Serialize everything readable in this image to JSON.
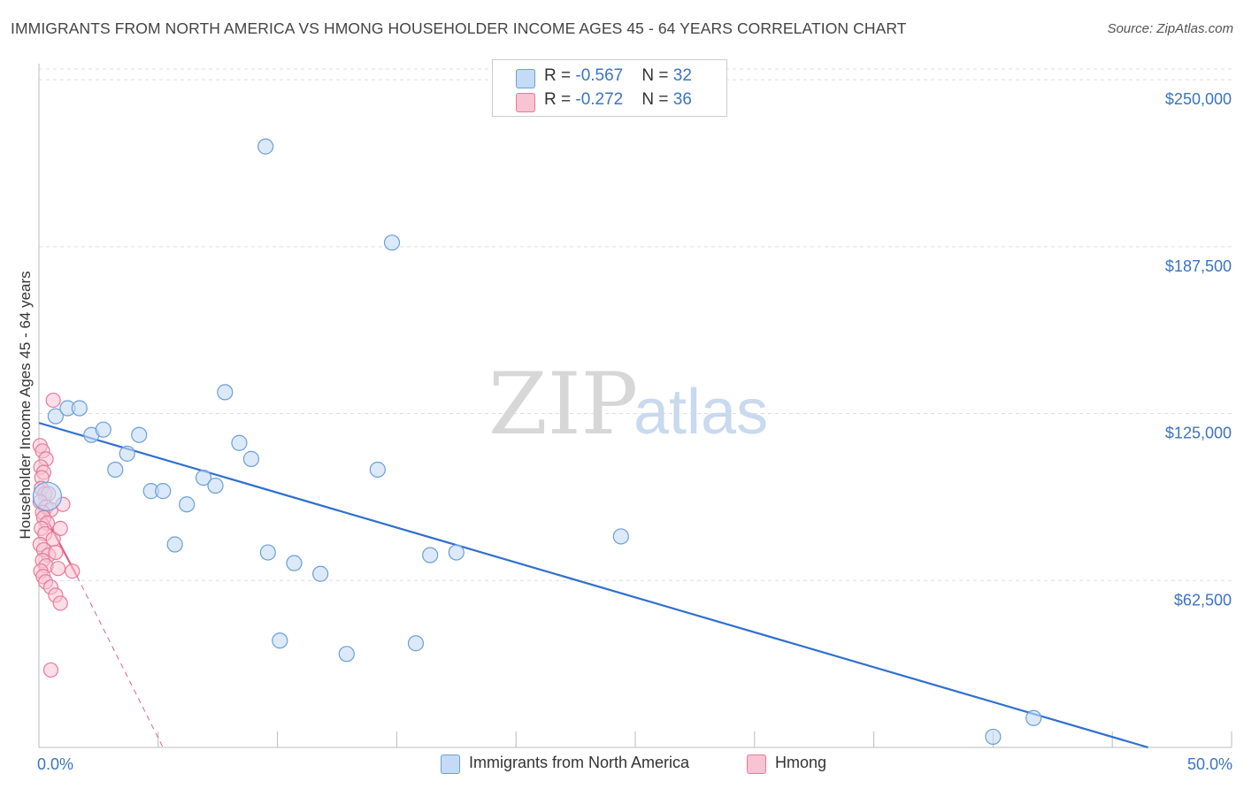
{
  "title": "IMMIGRANTS FROM NORTH AMERICA VS HMONG HOUSEHOLDER INCOME AGES 45 - 64 YEARS CORRELATION CHART",
  "source": "Source: ZipAtlas.com",
  "watermark": {
    "part1": "ZIP",
    "part2": "atlas"
  },
  "colors": {
    "blue_fill": "#c5daf5",
    "blue_stroke": "#6a9fd8",
    "blue_line": "#2f6fcf",
    "pink_fill": "#f8c3d3",
    "pink_stroke": "#e8799b",
    "pink_line": "#e0608a",
    "tick_text": "#3a74c4",
    "grid": "#dddddd"
  },
  "legend": {
    "rows": [
      {
        "r_label": "R = ",
        "r_value": "-0.567",
        "n_label": "N = ",
        "n_value": "32"
      },
      {
        "r_label": "R = ",
        "r_value": "-0.272",
        "n_label": "N = ",
        "n_value": "36"
      }
    ]
  },
  "chart_data": {
    "type": "scatter",
    "title": "IMMIGRANTS FROM NORTH AMERICA VS HMONG HOUSEHOLDER INCOME AGES 45 - 64 YEARS CORRELATION CHART",
    "xlabel": "",
    "ylabel": "Householder Income Ages 45 - 64 years",
    "xlim": [
      0,
      50
    ],
    "ylim": [
      0,
      256000
    ],
    "x_tick_labels": [
      "0.0%",
      "50.0%"
    ],
    "y_ticks": [
      62500,
      125000,
      187500,
      250000
    ],
    "y_tick_labels": [
      "$62,500",
      "$125,000",
      "$187,500",
      "$250,000"
    ],
    "grid": true,
    "legend_position": "top-center",
    "series": [
      {
        "name": "Immigrants from North America",
        "color": "#6a9fd8",
        "points": [
          [
            0.35,
            94000
          ],
          [
            0.7,
            124000
          ],
          [
            1.2,
            127000
          ],
          [
            1.7,
            127000
          ],
          [
            2.2,
            117000
          ],
          [
            2.7,
            119000
          ],
          [
            3.2,
            104000
          ],
          [
            3.7,
            110000
          ],
          [
            4.2,
            117000
          ],
          [
            4.7,
            96000
          ],
          [
            5.2,
            96000
          ],
          [
            5.7,
            76000
          ],
          [
            6.2,
            91000
          ],
          [
            6.9,
            101000
          ],
          [
            7.4,
            98000
          ],
          [
            7.8,
            133000
          ],
          [
            8.4,
            114000
          ],
          [
            8.9,
            108000
          ],
          [
            9.5,
            225000
          ],
          [
            9.6,
            73000
          ],
          [
            10.1,
            40000
          ],
          [
            10.7,
            69000
          ],
          [
            11.8,
            65000
          ],
          [
            12.9,
            35000
          ],
          [
            14.2,
            104000
          ],
          [
            14.8,
            189000
          ],
          [
            15.8,
            39000
          ],
          [
            16.4,
            72000
          ],
          [
            17.5,
            73000
          ],
          [
            24.4,
            79000
          ],
          [
            40.0,
            4000
          ],
          [
            41.7,
            11000
          ]
        ],
        "trend": {
          "x": [
            0,
            46.5
          ],
          "y": [
            121500,
            0
          ]
        }
      },
      {
        "name": "Hmong",
        "color": "#e8799b",
        "points": [
          [
            0.05,
            113000
          ],
          [
            0.15,
            111000
          ],
          [
            0.3,
            108000
          ],
          [
            0.08,
            105000
          ],
          [
            0.2,
            103000
          ],
          [
            0.12,
            101000
          ],
          [
            0.1,
            97000
          ],
          [
            0.25,
            95000
          ],
          [
            0.4,
            95000
          ],
          [
            0.05,
            92000
          ],
          [
            0.3,
            90000
          ],
          [
            0.5,
            89000
          ],
          [
            0.15,
            88000
          ],
          [
            0.2,
            86000
          ],
          [
            0.35,
            84000
          ],
          [
            0.1,
            82000
          ],
          [
            0.25,
            80000
          ],
          [
            0.6,
            78000
          ],
          [
            0.05,
            76000
          ],
          [
            0.2,
            74000
          ],
          [
            0.4,
            72000
          ],
          [
            0.15,
            70000
          ],
          [
            0.3,
            68000
          ],
          [
            0.08,
            66000
          ],
          [
            0.18,
            64000
          ],
          [
            0.28,
            62000
          ],
          [
            0.5,
            60000
          ],
          [
            0.7,
            57000
          ],
          [
            0.9,
            54000
          ],
          [
            0.6,
            130000
          ],
          [
            1.0,
            91000
          ],
          [
            0.9,
            82000
          ],
          [
            0.7,
            73000
          ],
          [
            0.8,
            67000
          ],
          [
            1.4,
            66000
          ],
          [
            0.5,
            29000
          ]
        ],
        "trend_solid": {
          "x": [
            0,
            1.6
          ],
          "y": [
            91000,
            64000
          ]
        },
        "trend_dashed": {
          "x": [
            1.6,
            5.2
          ],
          "y": [
            64000,
            0
          ]
        }
      }
    ]
  }
}
